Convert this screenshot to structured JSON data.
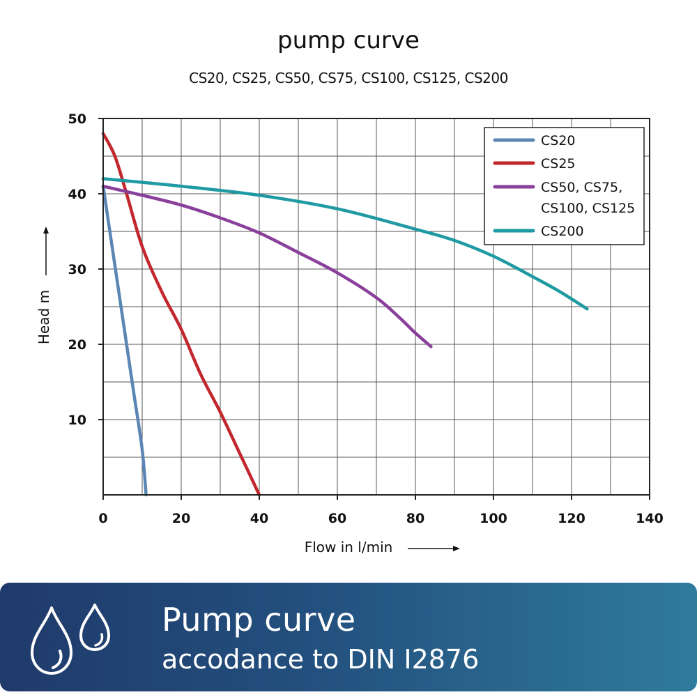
{
  "chart_data": {
    "type": "line",
    "title": "pump curve",
    "subtitle": "CS20, CS25, CS50, CS75, CS100, CS125, CS200",
    "xlabel": "Flow in l/min",
    "ylabel": "Head m",
    "xlim": [
      0,
      140
    ],
    "ylim": [
      0,
      50
    ],
    "xticks": [
      0,
      20,
      40,
      60,
      80,
      100,
      120,
      140
    ],
    "yticks": [
      10,
      20,
      30,
      40,
      50
    ],
    "grid": true,
    "legend_position": "top-right",
    "series": [
      {
        "name": "CS20",
        "color": "#5b86b4",
        "points": [
          [
            0,
            41
          ],
          [
            2,
            34
          ],
          [
            4,
            27
          ],
          [
            6,
            20
          ],
          [
            8,
            13
          ],
          [
            10,
            6
          ],
          [
            11,
            0
          ]
        ]
      },
      {
        "name": "CS25",
        "color": "#c1272d",
        "points": [
          [
            0,
            48
          ],
          [
            3,
            45
          ],
          [
            6,
            40
          ],
          [
            10,
            33
          ],
          [
            15,
            27
          ],
          [
            20,
            22
          ],
          [
            25,
            16
          ],
          [
            30,
            11
          ],
          [
            35,
            5.5
          ],
          [
            40,
            0
          ]
        ]
      },
      {
        "name": "CS50, CS75, CS100, CS125",
        "legend_lines": [
          "CS50, CS75,",
          "CS100, CS125"
        ],
        "color": "#8a3f9a",
        "points": [
          [
            0,
            41
          ],
          [
            10,
            39.8
          ],
          [
            20,
            38.5
          ],
          [
            30,
            36.8
          ],
          [
            40,
            34.8
          ],
          [
            50,
            32.2
          ],
          [
            60,
            29.5
          ],
          [
            70,
            26.2
          ],
          [
            76,
            23.5
          ],
          [
            80,
            21.5
          ],
          [
            84,
            19.7
          ]
        ]
      },
      {
        "name": "CS200",
        "color": "#1f9aa3",
        "points": [
          [
            0,
            42
          ],
          [
            20,
            41
          ],
          [
            40,
            39.8
          ],
          [
            60,
            38
          ],
          [
            80,
            35.3
          ],
          [
            90,
            33.8
          ],
          [
            100,
            31.7
          ],
          [
            110,
            29
          ],
          [
            117,
            27
          ],
          [
            124,
            24.7
          ]
        ]
      }
    ]
  },
  "banner": {
    "title": "Pump curve",
    "subtitle": "accodance to DIN I2876",
    "icon": "water-drops-icon"
  }
}
